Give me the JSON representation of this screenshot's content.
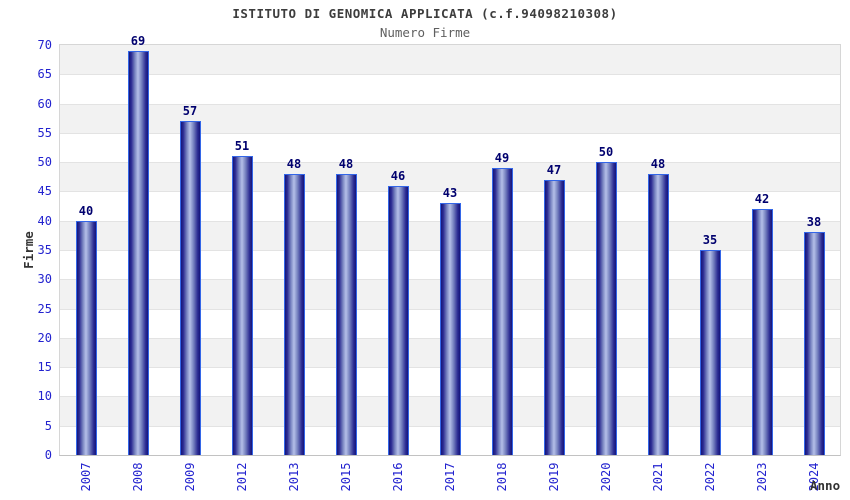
{
  "page": {
    "background": "#ffffff"
  },
  "chart_data": {
    "type": "bar",
    "title": "ISTITUTO DI GENOMICA APPLICATA (c.f.94098210308)",
    "subtitle": "Numero Firme",
    "xlabel": "Anno",
    "ylabel": "Firme",
    "categories": [
      "2007",
      "2008",
      "2009",
      "2012",
      "2013",
      "2015",
      "2016",
      "2017",
      "2018",
      "2019",
      "2020",
      "2021",
      "2022",
      "2023",
      "2024"
    ],
    "values": [
      40,
      69,
      57,
      51,
      48,
      48,
      46,
      43,
      49,
      47,
      50,
      48,
      35,
      42,
      38
    ],
    "ylim": [
      0,
      70
    ],
    "ytick_step": 5,
    "grid": "horizontal-bands-alternating",
    "legend": "none",
    "colors": {
      "tick_label": "#2323cf",
      "value_label": "#00006e",
      "title": "#3d3d3d",
      "subtitle": "#5f5f5f",
      "axis_title": "#333333",
      "band_alt": "#f2f2f2",
      "gridline": "#e3e3e3",
      "plot_border": "#d6d6d6",
      "bar_edge_dark": "#15157a",
      "bar_mid": "#7d89c4",
      "bar_highlight": "#b5bfe8",
      "bar_border": "#3366e8"
    }
  }
}
